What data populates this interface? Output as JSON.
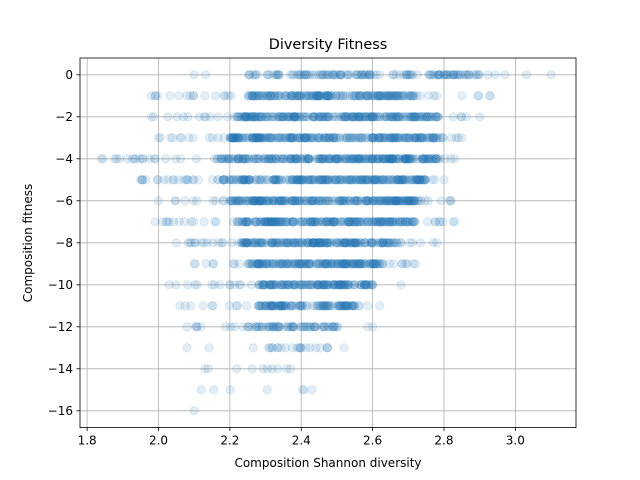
{
  "chart_data": {
    "type": "scatter",
    "title": "Diversity Fitness",
    "xlabel": "Composition Shannon diversity",
    "ylabel": "Composition fitness",
    "xlim": [
      1.78,
      3.17
    ],
    "ylim": [
      -16.8,
      0.8
    ],
    "xticks": [
      1.8,
      2.0,
      2.2,
      2.4,
      2.6,
      2.8,
      3.0
    ],
    "xtick_labels": [
      "1.8",
      "2.0",
      "2.2",
      "2.4",
      "2.6",
      "2.8",
      "3.0"
    ],
    "yticks": [
      0,
      -2,
      -4,
      -6,
      -8,
      -10,
      -12,
      -14,
      -16
    ],
    "ytick_labels": [
      "0",
      "−2",
      "−4",
      "−6",
      "−8",
      "−10",
      "−12",
      "−14",
      "−16"
    ],
    "grid": true,
    "marker_color": "#1f77b4",
    "marker_alpha": 0.12,
    "rows": [
      {
        "y": 0,
        "xmin": 2.1,
        "xmax": 3.1,
        "dense_min": 2.25,
        "dense_max": 2.9,
        "count": 140
      },
      {
        "y": -1,
        "xmin": 1.98,
        "xmax": 2.93,
        "dense_min": 2.25,
        "dense_max": 2.72,
        "count": 220
      },
      {
        "y": -2,
        "xmin": 1.98,
        "xmax": 2.9,
        "dense_min": 2.22,
        "dense_max": 2.8,
        "count": 260
      },
      {
        "y": -3,
        "xmin": 2.0,
        "xmax": 2.85,
        "dense_min": 2.2,
        "dense_max": 2.8,
        "count": 280
      },
      {
        "y": -4,
        "xmin": 1.84,
        "xmax": 2.83,
        "dense_min": 2.17,
        "dense_max": 2.78,
        "count": 300
      },
      {
        "y": -5,
        "xmin": 1.95,
        "xmax": 2.8,
        "dense_min": 2.18,
        "dense_max": 2.75,
        "count": 280
      },
      {
        "y": -6,
        "xmin": 2.0,
        "xmax": 2.82,
        "dense_min": 2.2,
        "dense_max": 2.73,
        "count": 270
      },
      {
        "y": -7,
        "xmin": 1.99,
        "xmax": 2.83,
        "dense_min": 2.22,
        "dense_max": 2.72,
        "count": 250
      },
      {
        "y": -8,
        "xmin": 2.05,
        "xmax": 2.78,
        "dense_min": 2.23,
        "dense_max": 2.68,
        "count": 220
      },
      {
        "y": -9,
        "xmin": 2.1,
        "xmax": 2.72,
        "dense_min": 2.25,
        "dense_max": 2.63,
        "count": 200
      },
      {
        "y": -10,
        "xmin": 2.03,
        "xmax": 2.68,
        "dense_min": 2.28,
        "dense_max": 2.6,
        "count": 160
      },
      {
        "y": -11,
        "xmin": 2.06,
        "xmax": 2.62,
        "dense_min": 2.28,
        "dense_max": 2.55,
        "count": 130
      },
      {
        "y": -12,
        "xmin": 2.08,
        "xmax": 2.6,
        "dense_min": 2.25,
        "dense_max": 2.5,
        "count": 80
      },
      {
        "y": -13,
        "xmin": 2.08,
        "xmax": 2.52,
        "dense_min": 2.3,
        "dense_max": 2.48,
        "count": 25
      },
      {
        "y": -14,
        "xmin": 2.13,
        "xmax": 2.37,
        "dense_min": 2.13,
        "dense_max": 2.37,
        "count": 10
      },
      {
        "y": -15,
        "xmin": 2.12,
        "xmax": 2.43,
        "dense_min": 2.12,
        "dense_max": 2.43,
        "count": 7
      },
      {
        "y": -16,
        "xmin": 2.1,
        "xmax": 2.1,
        "dense_min": 2.1,
        "dense_max": 2.1,
        "count": 1
      }
    ]
  }
}
